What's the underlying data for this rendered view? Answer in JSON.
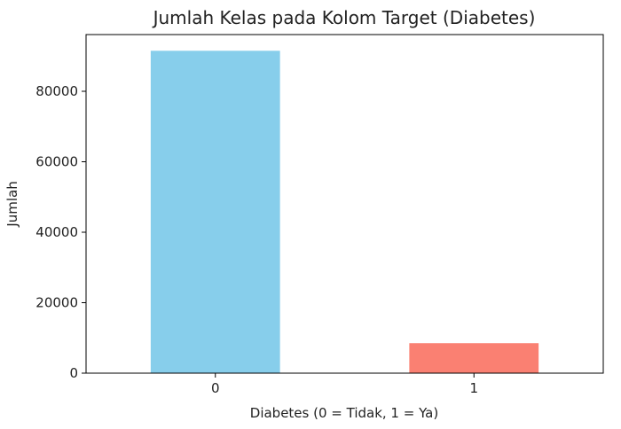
{
  "chart_data": {
    "type": "bar",
    "title": "Jumlah Kelas pada Kolom Target (Diabetes)",
    "xlabel": "Diabetes (0 = Tidak, 1 = Ya)",
    "ylabel": "Jumlah",
    "categories": [
      "0",
      "1"
    ],
    "values": [
      91500,
      8500
    ],
    "colors": [
      "#87ceeb",
      "#fa8072"
    ],
    "ylim": [
      0,
      96100
    ],
    "yticks": [
      0,
      20000,
      40000,
      60000,
      80000
    ],
    "grid": false,
    "legend": "none"
  }
}
